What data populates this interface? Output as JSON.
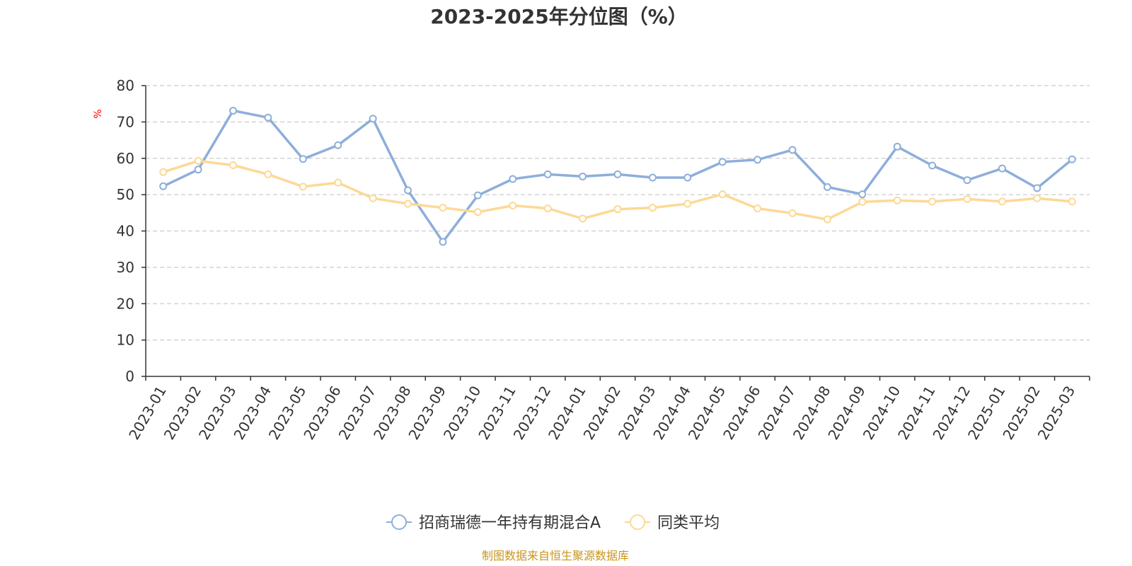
{
  "chart_data": {
    "type": "line",
    "title": "2023-2025年分位图（%）",
    "y_unit": "%",
    "ylim": [
      0,
      80
    ],
    "y_ticks": [
      0,
      10,
      20,
      30,
      40,
      50,
      60,
      70,
      80
    ],
    "grid": true,
    "legend_position": "bottom-center",
    "categories": [
      "2023-01",
      "2023-02",
      "2023-03",
      "2023-04",
      "2023-05",
      "2023-06",
      "2023-07",
      "2023-08",
      "2023-09",
      "2023-10",
      "2023-11",
      "2023-12",
      "2024-01",
      "2024-02",
      "2024-03",
      "2024-04",
      "2024-05",
      "2024-06",
      "2024-07",
      "2024-08",
      "2024-09",
      "2024-10",
      "2024-11",
      "2024-12",
      "2025-01",
      "2025-02",
      "2025-03"
    ],
    "series": [
      {
        "name": "招商瑞德一年持有期混合A",
        "color": "#8eaedb",
        "values": [
          52.3,
          56.9,
          73.1,
          71.2,
          59.8,
          63.6,
          70.9,
          51.2,
          37.0,
          49.8,
          54.3,
          55.6,
          55.0,
          55.6,
          54.7,
          54.7,
          59.0,
          59.6,
          62.3,
          52.1,
          50.1,
          63.2,
          58.0,
          54.0,
          57.2,
          51.8,
          59.7
        ]
      },
      {
        "name": "同类平均",
        "color": "#fcd995",
        "values": [
          56.2,
          59.3,
          58.1,
          55.6,
          52.2,
          53.3,
          49.0,
          47.5,
          46.4,
          45.2,
          47.0,
          46.2,
          43.4,
          46.0,
          46.4,
          47.5,
          50.1,
          46.2,
          44.9,
          43.2,
          48.0,
          48.4,
          48.1,
          48.8,
          48.1,
          49.0,
          48.1
        ]
      }
    ]
  },
  "source_note": "制图数据来自恒生聚源数据库",
  "colors": {
    "axis": "#333333",
    "grid": "#cccccc",
    "unit": "#ff0000",
    "source": "#c8961e"
  }
}
